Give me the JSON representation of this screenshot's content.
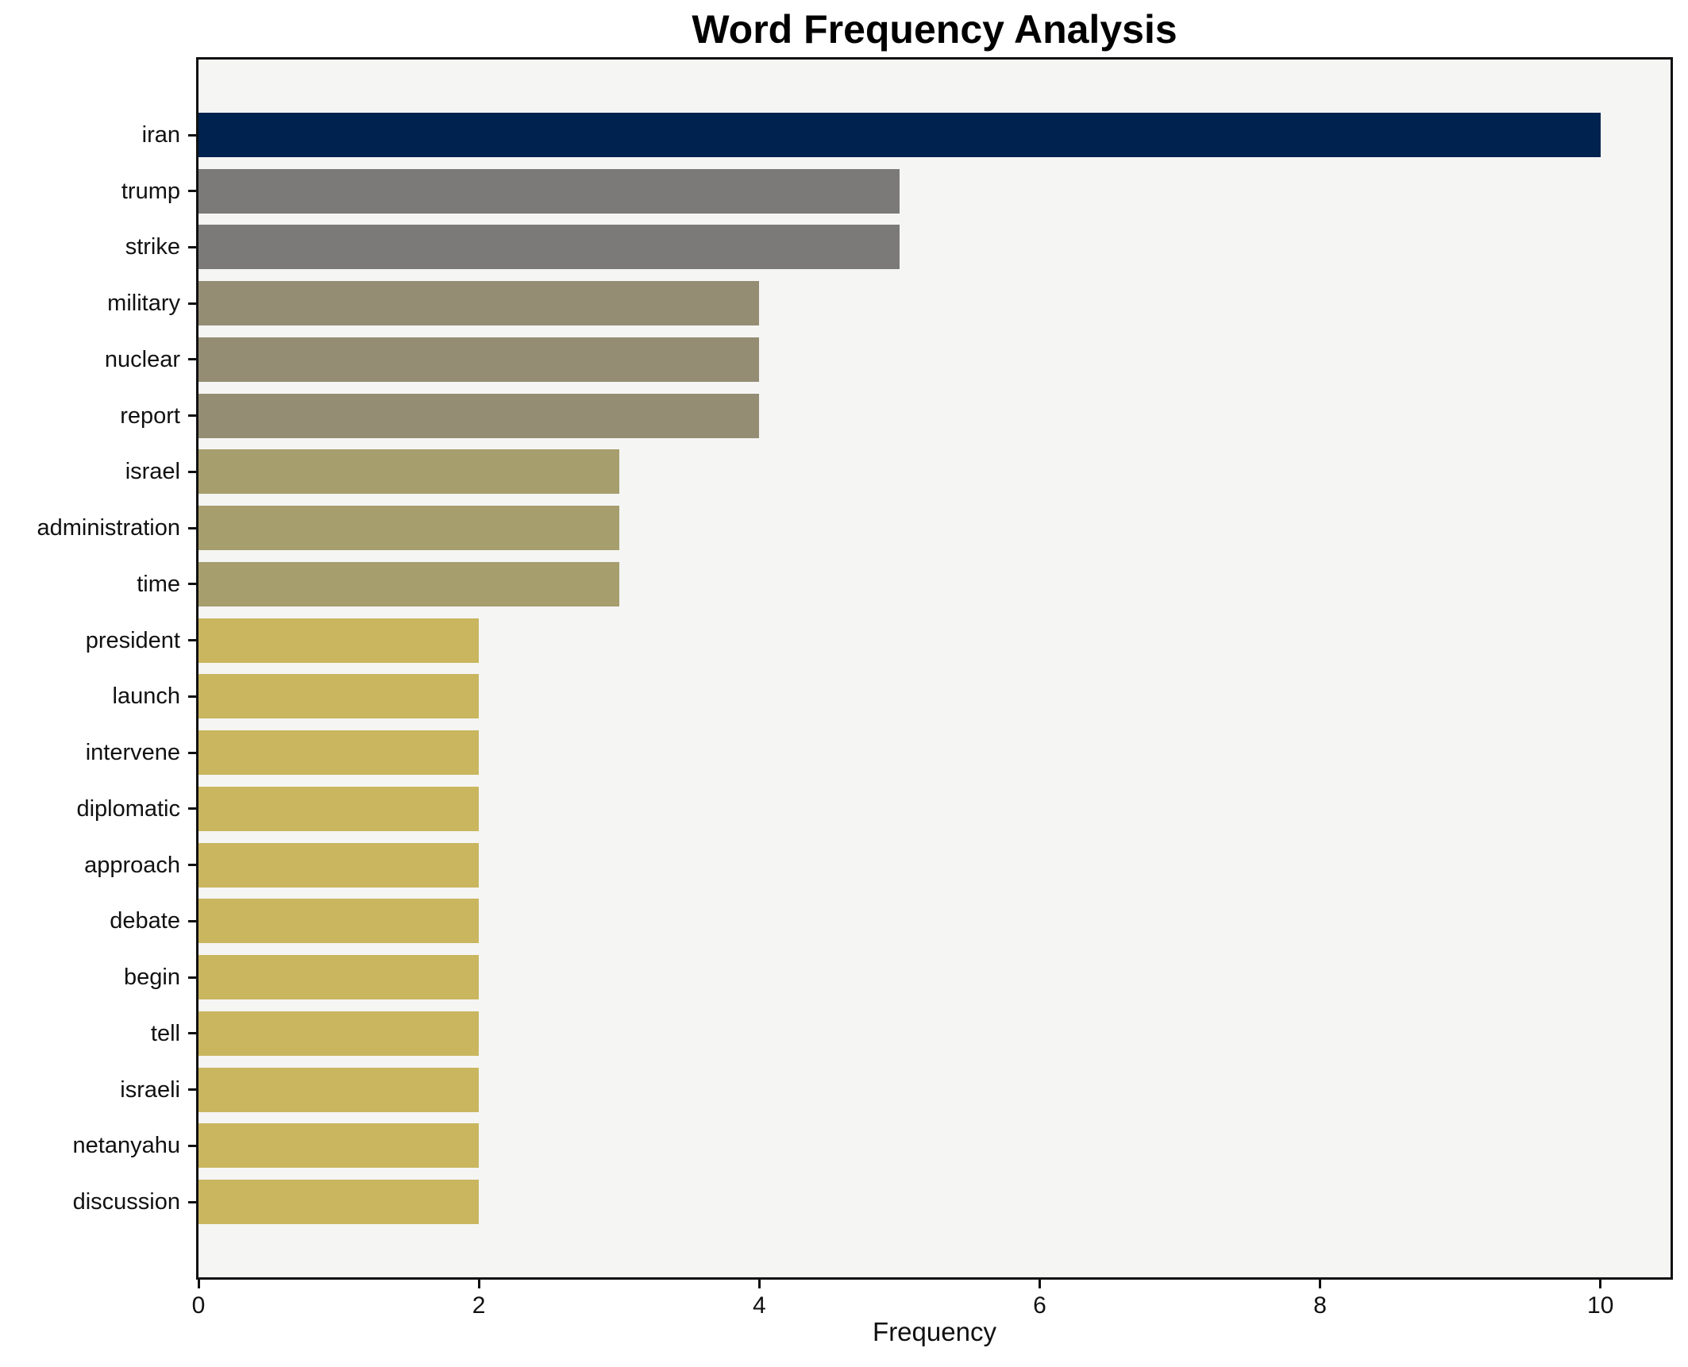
{
  "chart": {
    "title": "Word Frequency Analysis",
    "xlabel": "Frequency"
  },
  "chart_data": {
    "type": "bar",
    "orientation": "horizontal",
    "title": "Word Frequency Analysis",
    "xlabel": "Frequency",
    "ylabel": "",
    "categories": [
      "iran",
      "trump",
      "strike",
      "military",
      "nuclear",
      "report",
      "israel",
      "administration",
      "time",
      "president",
      "launch",
      "intervene",
      "diplomatic",
      "approach",
      "debate",
      "begin",
      "tell",
      "israeli",
      "netanyahu",
      "discussion"
    ],
    "values": [
      10,
      5,
      5,
      4,
      4,
      4,
      3,
      3,
      3,
      2,
      2,
      2,
      2,
      2,
      2,
      2,
      2,
      2,
      2,
      2
    ],
    "x_ticks": [
      0,
      2,
      4,
      6,
      8,
      10
    ],
    "xlim": [
      0,
      10.5
    ],
    "grid": false,
    "legend": null,
    "bar_colors_by_value": {
      "10": "#00224e",
      "5": "#7b7a78",
      "4": "#948d74",
      "3": "#a69e6d",
      "2": "#c9b65f"
    },
    "plot_background": "#f5f5f4",
    "figure_background": "#ffffff",
    "spine_color": "#111111",
    "text_color": "#111111"
  }
}
